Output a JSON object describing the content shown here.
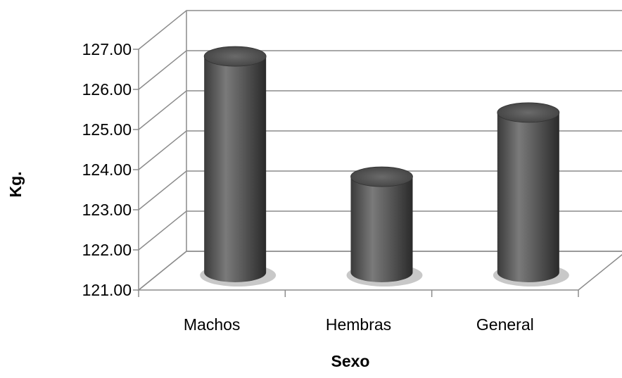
{
  "chart_data": {
    "type": "bar",
    "style": "3d-cylinder",
    "categories": [
      "Machos",
      "Hembras",
      "General"
    ],
    "values": [
      126.45,
      123.45,
      125.05
    ],
    "xlabel": "Sexo",
    "ylabel": "Kg.",
    "ylim": [
      121.0,
      127.0
    ],
    "yticks": [
      "121.00",
      "122.00",
      "123.00",
      "124.00",
      "125.00",
      "126.00",
      "127.00"
    ],
    "grid": true,
    "legend": "none",
    "bar_color": "#5a5a5a"
  }
}
